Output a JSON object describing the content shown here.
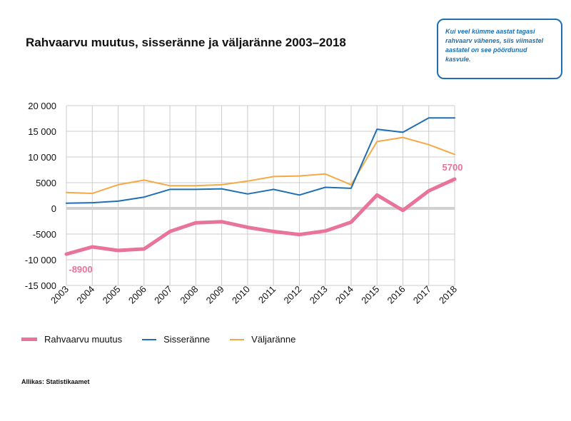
{
  "title": "Rahvaarvu muutus, sisseränne ja väljaränne 2003–2018",
  "callout": "Kui veel kümme aastat tagasi rahvaarv vähenes, siis viimastel aastatel on see pöördunud kasvule.",
  "source": "Allikas: Statistikaamet",
  "colors": {
    "pink": "#e8739c",
    "blue": "#1f6fb2",
    "orange": "#f5a944",
    "grid": "#cccccc",
    "zero": "#d0d0d0"
  },
  "chart_data": {
    "type": "line",
    "title": "Rahvaarvu muutus, sisseränne ja väljaränne 2003–2018",
    "x": [
      "2003",
      "2004",
      "2005",
      "2006",
      "2007",
      "2008",
      "2009",
      "2010",
      "2011",
      "2012",
      "2013",
      "2014",
      "2015",
      "2016",
      "2017",
      "2018"
    ],
    "ylim": [
      -15000,
      20000
    ],
    "yticks": [
      20000,
      15000,
      10000,
      5000,
      0,
      -5000,
      -10000,
      -15000
    ],
    "ytick_labels": [
      "20 000",
      "15 000",
      "10 000",
      "5000",
      "0",
      "-5000",
      "-10 000",
      "-15 000"
    ],
    "grid": true,
    "legend": "bottom",
    "series": [
      {
        "name": "Rahvaarvu muutus",
        "color": "#e8739c",
        "width": 5,
        "values": [
          -8900,
          -7500,
          -8200,
          -7900,
          -4500,
          -2800,
          -2600,
          -3700,
          -4500,
          -5100,
          -4400,
          -2700,
          2600,
          -400,
          3400,
          5700
        ]
      },
      {
        "name": "Sisseränne",
        "color": "#1f6fb2",
        "width": 2,
        "values": [
          1000,
          1100,
          1400,
          2200,
          3700,
          3700,
          3800,
          2800,
          3700,
          2600,
          4100,
          3900,
          15400,
          14800,
          17600,
          17600
        ]
      },
      {
        "name": "Väljaränne",
        "color": "#f5a944",
        "width": 2,
        "values": [
          3100,
          2900,
          4600,
          5500,
          4400,
          4400,
          4600,
          5300,
          6200,
          6300,
          6700,
          4600,
          13000,
          13800,
          12400,
          10500
        ]
      }
    ],
    "annotations": [
      {
        "text": "-8900",
        "index": 0,
        "series": 0
      },
      {
        "text": "5700",
        "index": 15,
        "series": 0
      }
    ]
  }
}
